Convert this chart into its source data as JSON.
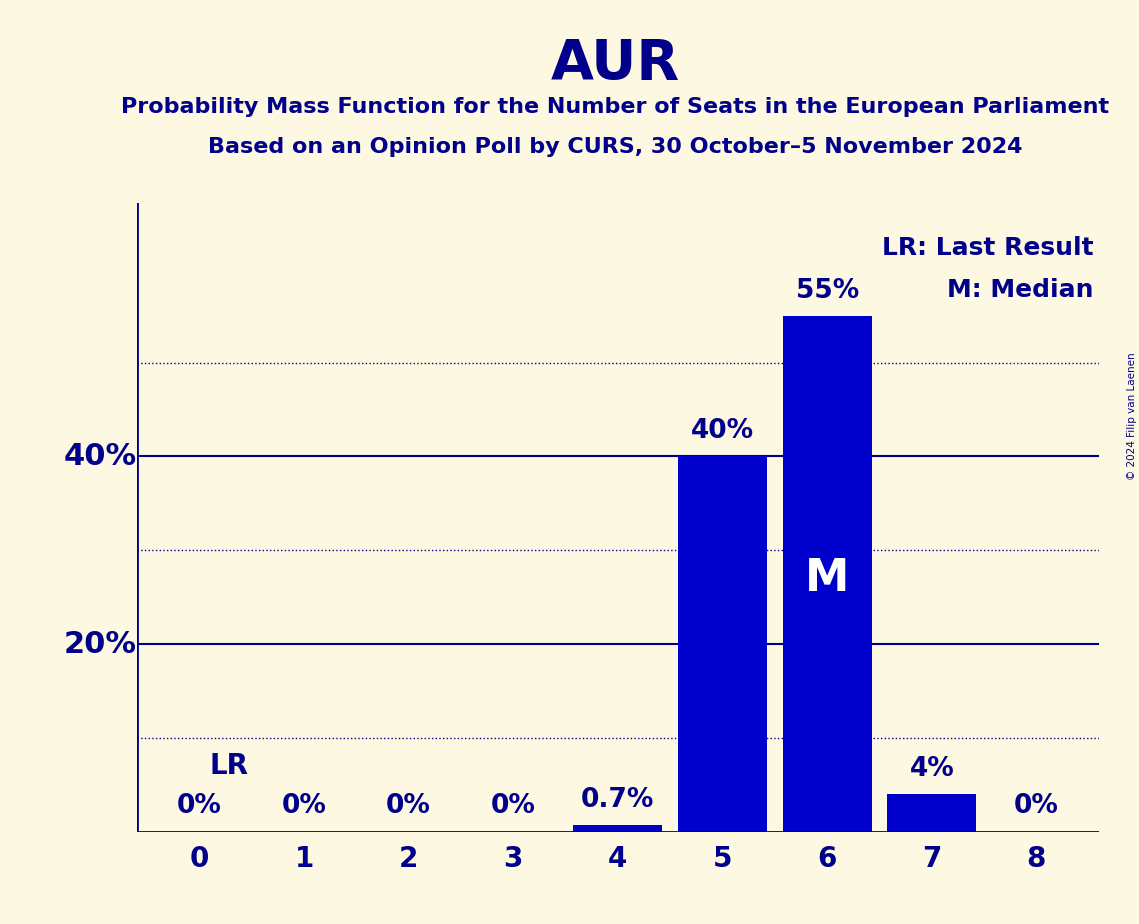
{
  "title": "AUR",
  "subtitle1": "Probability Mass Function for the Number of Seats in the European Parliament",
  "subtitle2": "Based on an Opinion Poll by CURS, 30 October–5 November 2024",
  "seats": [
    0,
    1,
    2,
    3,
    4,
    5,
    6,
    7,
    8
  ],
  "probabilities": [
    0.0,
    0.0,
    0.0,
    0.0,
    0.007,
    0.4,
    0.55,
    0.04,
    0.0
  ],
  "bar_color": "#0000cc",
  "background_color": "#fdf8e1",
  "axis_color": "#00008b",
  "median_seat": 6,
  "lr_seat": 0,
  "solid_lines": [
    0.2,
    0.4
  ],
  "dotted_lines": [
    0.1,
    0.3,
    0.5
  ],
  "ylim": [
    0,
    0.67
  ],
  "bar_labels": [
    "0%",
    "0%",
    "0%",
    "0%",
    "0.7%",
    "40%",
    "55%",
    "4%",
    "0%"
  ],
  "copyright_text": "© 2024 Filip van Laenen",
  "legend_lr": "LR: Last Result",
  "legend_m": "M: Median"
}
